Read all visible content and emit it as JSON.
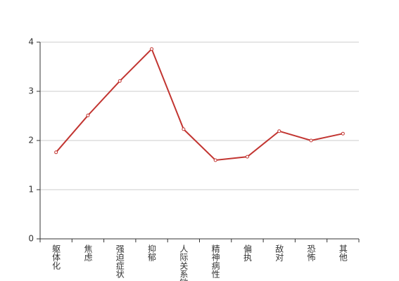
{
  "chart_data": {
    "type": "line",
    "categories": [
      "躯体化",
      "焦虑",
      "强迫症状",
      "抑郁",
      "人际关系敏感",
      "精神病性",
      "偏执",
      "敌对",
      "恐怖",
      "其他"
    ],
    "series": [
      {
        "color": "#c23531",
        "values": [
          1.76,
          2.51,
          3.21,
          3.86,
          2.23,
          1.6,
          1.67,
          2.19,
          2.0,
          2.14
        ]
      }
    ],
    "ylim": [
      0,
      4
    ],
    "yticks": [
      0,
      1,
      2,
      3,
      4
    ],
    "grid": true
  }
}
